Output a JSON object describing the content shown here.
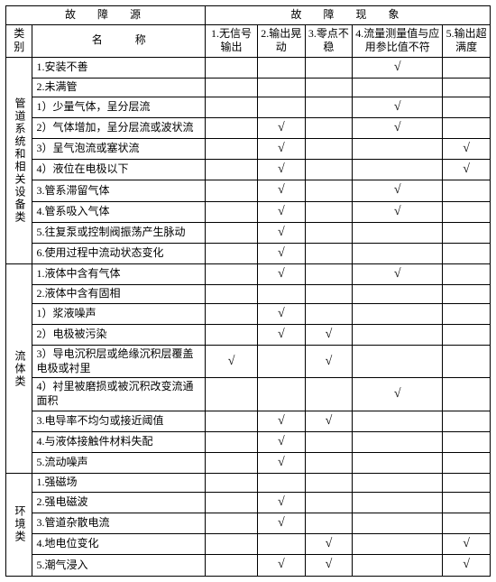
{
  "mark": "√",
  "headers": {
    "fault_source": "故　障　源",
    "fault_phenomena": "故　障　现　象",
    "category": "类别",
    "name": "名　　　称",
    "col1": "1.无信号输出",
    "col2": "2.输出晃动",
    "col3": "3.零点不稳",
    "col4": "4.流量测量值与应用参比值不符",
    "col5": "5.输出超满度"
  },
  "categories": [
    {
      "label": "管道系统和相关设备类",
      "rows": [
        {
          "name": "1.安装不善",
          "c": [
            0,
            0,
            0,
            1,
            0
          ]
        },
        {
          "name": "2.未满管",
          "c": [
            0,
            0,
            0,
            0,
            0
          ]
        },
        {
          "name": "1）少量气体，呈分层流",
          "c": [
            0,
            0,
            0,
            1,
            0
          ]
        },
        {
          "name": "2）气体增加，呈分层流或波状流",
          "c": [
            0,
            1,
            0,
            1,
            0
          ]
        },
        {
          "name": "3）呈气泡流或塞状流",
          "c": [
            0,
            1,
            0,
            0,
            1
          ]
        },
        {
          "name": "4）液位在电极以下",
          "c": [
            0,
            1,
            0,
            0,
            1
          ]
        },
        {
          "name": "3.管系滞留气体",
          "c": [
            0,
            1,
            0,
            1,
            0
          ]
        },
        {
          "name": "4.管系吸入气体",
          "c": [
            0,
            1,
            0,
            1,
            0
          ]
        },
        {
          "name": "5.往复泵或控制阀振荡产生脉动",
          "c": [
            0,
            1,
            0,
            0,
            0
          ]
        },
        {
          "name": "6.使用过程中流动状态变化",
          "c": [
            0,
            1,
            0,
            0,
            0
          ]
        }
      ]
    },
    {
      "label": "流体类",
      "rows": [
        {
          "name": "1.液体中含有气体",
          "c": [
            0,
            1,
            0,
            1,
            0
          ]
        },
        {
          "name": "2.液体中含有固相",
          "c": [
            0,
            0,
            0,
            0,
            0
          ]
        },
        {
          "name": "1）浆液噪声",
          "c": [
            0,
            1,
            0,
            0,
            0
          ]
        },
        {
          "name": "2）电极被污染",
          "c": [
            0,
            1,
            1,
            0,
            0
          ]
        },
        {
          "name": "3）导电沉积层或绝缘沉积层覆盖电极或衬里",
          "c": [
            1,
            0,
            1,
            0,
            0
          ]
        },
        {
          "name": "4）衬里被磨损或被沉积改变流通面积",
          "c": [
            0,
            0,
            0,
            1,
            0
          ]
        },
        {
          "name": "3.电导率不均匀或接近阈值",
          "c": [
            0,
            1,
            1,
            0,
            0
          ]
        },
        {
          "name": "4.与液体接触件材料失配",
          "c": [
            0,
            1,
            0,
            0,
            0
          ]
        },
        {
          "name": "5.流动噪声",
          "c": [
            0,
            1,
            0,
            0,
            0
          ]
        }
      ]
    },
    {
      "label": "环境类",
      "rows": [
        {
          "name": "1.强磁场",
          "c": [
            0,
            0,
            0,
            0,
            0
          ]
        },
        {
          "name": "2.强电磁波",
          "c": [
            0,
            1,
            0,
            0,
            0
          ]
        },
        {
          "name": "3.管道杂散电流",
          "c": [
            0,
            1,
            0,
            0,
            0
          ]
        },
        {
          "name": "4.地电位变化",
          "c": [
            0,
            0,
            1,
            0,
            1
          ]
        },
        {
          "name": "5.潮气浸入",
          "c": [
            0,
            1,
            1,
            0,
            1
          ]
        }
      ]
    }
  ],
  "style": {
    "border_color": "#000000",
    "background": "#ffffff",
    "font_size_cell": 12,
    "font_size_check": 14
  }
}
